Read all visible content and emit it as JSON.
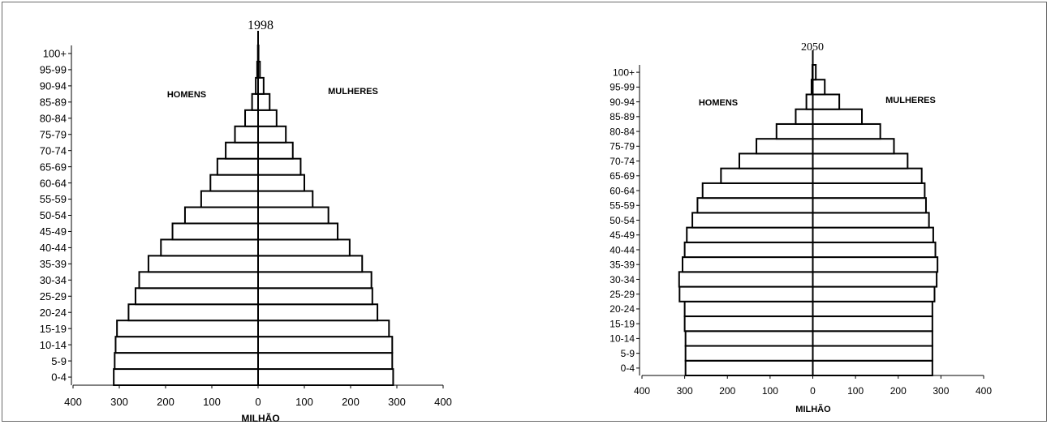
{
  "chart_data": [
    {
      "type": "bar",
      "title": "1998",
      "xlabel": "MILHÃO",
      "ylabel": "",
      "xlim": [
        -400,
        400
      ],
      "x_ticks": [
        "400",
        "300",
        "200",
        "100",
        "0",
        "100",
        "200",
        "300",
        "400"
      ],
      "annotations": [
        "HOMENS",
        "MULHERES"
      ],
      "categories": [
        "0-4",
        "5-9",
        "10-14",
        "15-19",
        "20-24",
        "25-29",
        "30-34",
        "35-39",
        "40-44",
        "45-49",
        "50-54",
        "55-59",
        "60-64",
        "65-69",
        "70-74",
        "75-79",
        "80-84",
        "85-89",
        "90-94",
        "95-99",
        "100+"
      ],
      "series": [
        {
          "name": "HOMENS",
          "values": [
            312,
            310,
            308,
            305,
            280,
            265,
            257,
            237,
            210,
            185,
            158,
            123,
            103,
            88,
            70,
            50,
            28,
            13,
            5,
            2,
            0.5
          ]
        },
        {
          "name": "MULHERES",
          "values": [
            292,
            290,
            290,
            283,
            258,
            247,
            245,
            225,
            198,
            172,
            152,
            118,
            100,
            92,
            75,
            60,
            40,
            25,
            12,
            4,
            1
          ]
        }
      ]
    },
    {
      "type": "bar",
      "title": "2050",
      "xlabel": "MILHÃO",
      "ylabel": "",
      "xlim": [
        -400,
        400
      ],
      "x_ticks": [
        "400",
        "300",
        "200",
        "100",
        "0",
        "100",
        "200",
        "300",
        "400"
      ],
      "annotations": [
        "HOMENS",
        "MULHERES"
      ],
      "categories": [
        "0-4",
        "5-9",
        "10-14",
        "15-19",
        "20-24",
        "25-29",
        "30-34",
        "35-39",
        "40-44",
        "45-49",
        "50-54",
        "55-59",
        "60-64",
        "65-69",
        "70-74",
        "75-79",
        "80-84",
        "85-89",
        "90-94",
        "95-99",
        "100+"
      ],
      "series": [
        {
          "name": "HOMENS",
          "values": [
            298,
            298,
            298,
            300,
            300,
            312,
            313,
            305,
            300,
            295,
            282,
            270,
            258,
            215,
            172,
            132,
            85,
            40,
            15,
            3,
            1
          ]
        },
        {
          "name": "MULHERES",
          "values": [
            280,
            280,
            280,
            280,
            280,
            285,
            290,
            292,
            287,
            282,
            272,
            265,
            262,
            255,
            222,
            190,
            158,
            115,
            62,
            28,
            7
          ]
        }
      ]
    }
  ]
}
